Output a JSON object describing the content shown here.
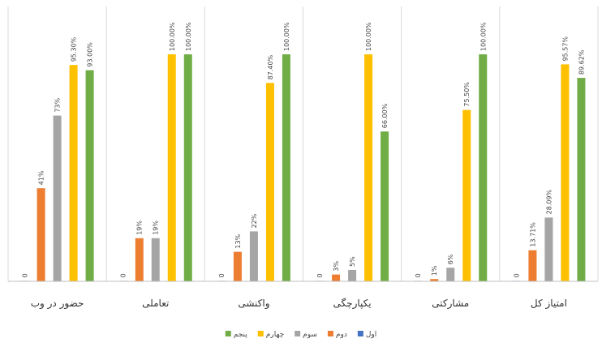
{
  "chart_data": {
    "type": "bar",
    "categories": [
      "امتیاز کل",
      "مشارکتی",
      "یکپارچگی",
      "واکنشی",
      "تعاملی",
      "حضور در وب"
    ],
    "series": [
      {
        "name": "اول",
        "color": "#4472C4",
        "values": [
          0,
          0,
          0,
          0,
          0,
          0
        ],
        "labels": [
          "0",
          "0",
          "0",
          "0",
          "0",
          "0"
        ]
      },
      {
        "name": "دوم",
        "color": "#ED7D31",
        "values": [
          13.71,
          1,
          3,
          13,
          19,
          41
        ],
        "labels": [
          "13.71%",
          "1%",
          "3%",
          "13%",
          "19%",
          "41%"
        ]
      },
      {
        "name": "سوم",
        "color": "#A5A5A5",
        "values": [
          28.09,
          6,
          5,
          22,
          19,
          73
        ],
        "labels": [
          "28.09%",
          "6%",
          "5%",
          "22%",
          "19%",
          "73%"
        ]
      },
      {
        "name": "چهارم",
        "color": "#FFC000",
        "values": [
          95.57,
          75.5,
          100,
          87.4,
          100,
          95.3
        ],
        "labels": [
          "95.57%",
          "75.50%",
          "100.00%",
          "87.40%",
          "100.00%",
          "95.30%"
        ]
      },
      {
        "name": "پنجم",
        "color": "#70AD47",
        "values": [
          89.62,
          100,
          66,
          100,
          100,
          93
        ],
        "labels": [
          "89.62%",
          "100.00%",
          "66.00%",
          "100.00%",
          "100.00%",
          "93.00%"
        ]
      }
    ],
    "ylim": [
      0,
      100
    ],
    "grid": false,
    "legend": "bottom",
    "category_order": "right-to-left"
  }
}
